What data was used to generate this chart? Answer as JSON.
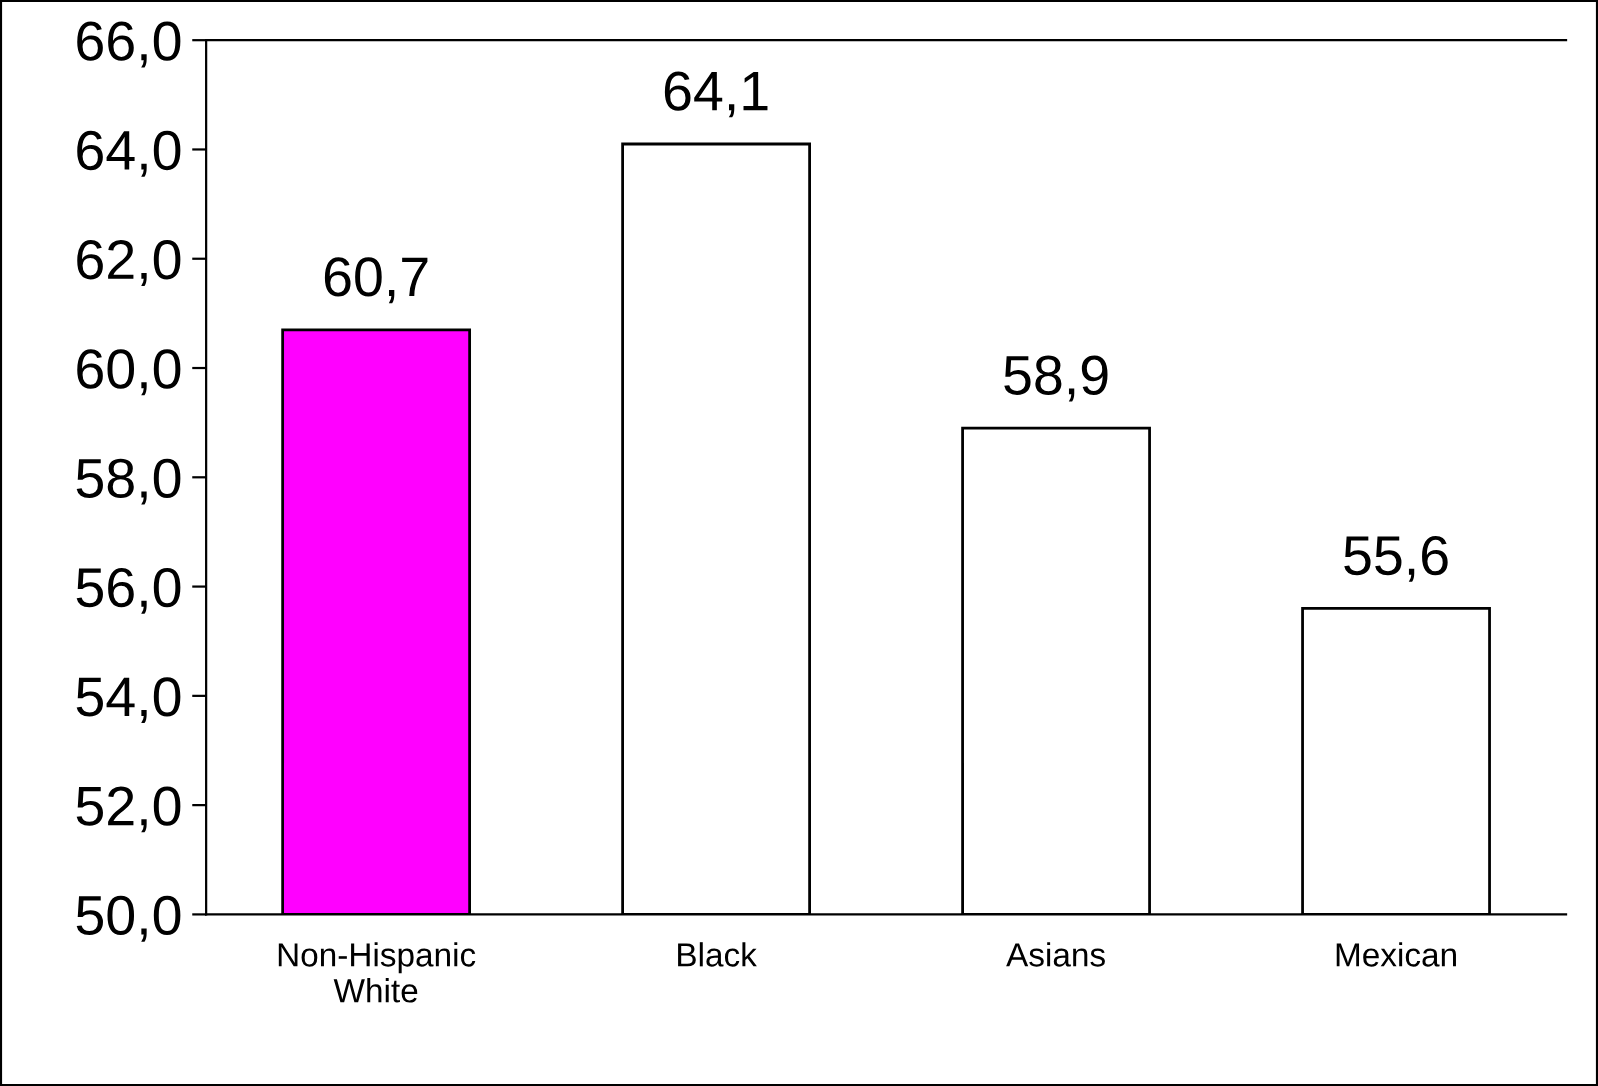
{
  "chart_data": {
    "type": "bar",
    "categories": [
      "Non-Hispanic\nWhite",
      "Black",
      "Asians",
      "Mexican"
    ],
    "values": [
      60.7,
      64.1,
      58.9,
      55.6
    ],
    "colors": [
      "#ff00ff",
      "#ffffff",
      "#ffffff",
      "#ffffff"
    ],
    "value_labels": [
      "60,7",
      "64,1",
      "58,9",
      "55,6"
    ],
    "ylim": [
      50,
      66
    ],
    "yticks": [
      {
        "value": 50,
        "label": "50,0"
      },
      {
        "value": 52,
        "label": "52,0"
      },
      {
        "value": 54,
        "label": "54,0"
      },
      {
        "value": 56,
        "label": "56,0"
      },
      {
        "value": 58,
        "label": "58,0"
      },
      {
        "value": 60,
        "label": "60,0"
      },
      {
        "value": 62,
        "label": "62,0"
      },
      {
        "value": 64,
        "label": "64,0"
      },
      {
        "value": 66,
        "label": "66,0"
      }
    ],
    "grid": false,
    "legend": false
  }
}
